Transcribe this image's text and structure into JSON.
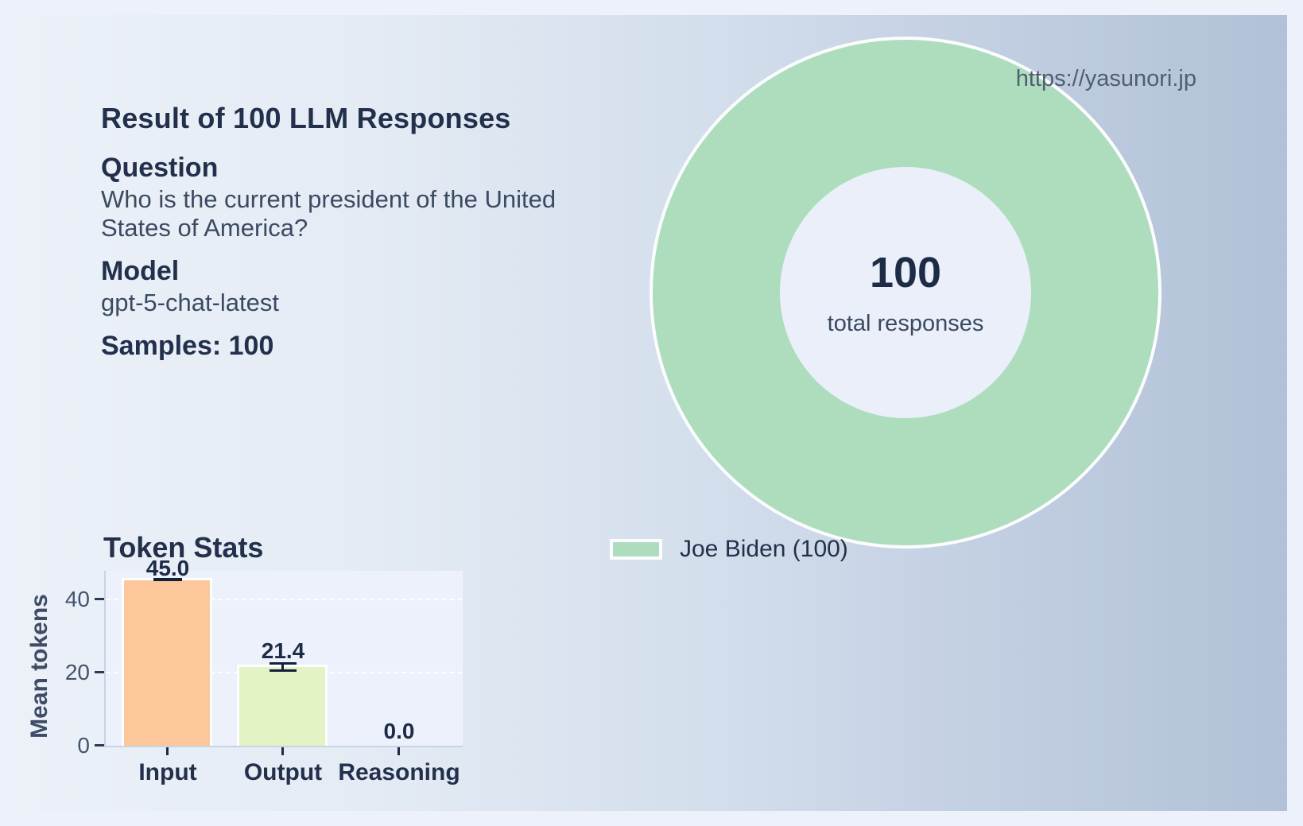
{
  "watermark": {
    "url": "https://yasunori.jp"
  },
  "summary": {
    "title": "Result of 100 LLM Responses",
    "question_label": "Question",
    "question_text": "Who is the current president of the United States of America?",
    "model_label": "Model",
    "model_value": "gpt-5-chat-latest",
    "samples_text": "Samples: 100"
  },
  "chart_data": [
    {
      "type": "pie",
      "subtype": "donut",
      "title": "",
      "labels": [
        "Joe Biden"
      ],
      "values": [
        100
      ],
      "percentages": [
        100
      ],
      "total": 100,
      "center_text": "100",
      "center_caption": "total responses",
      "colors": [
        "#aeddbe"
      ],
      "legend_entries": [
        "Joe Biden (100)"
      ],
      "legend_position": "bottom-left"
    },
    {
      "type": "bar",
      "title": "Token Stats",
      "categories": [
        "Input",
        "Output",
        "Reasoning"
      ],
      "values": [
        45.0,
        21.4,
        0.0
      ],
      "errors": [
        0.4,
        0.8,
        0.0
      ],
      "value_labels": [
        "45.0",
        "21.4",
        "0.0"
      ],
      "bar_colors": [
        "#fcc89b",
        "#e4f3c5",
        "#e4f3c5"
      ],
      "xlabel": "",
      "ylabel": "Mean tokens",
      "yticks": [
        0,
        20,
        40
      ],
      "ylim": [
        0,
        47.7
      ],
      "grid": "horizontal-dashed"
    }
  ]
}
